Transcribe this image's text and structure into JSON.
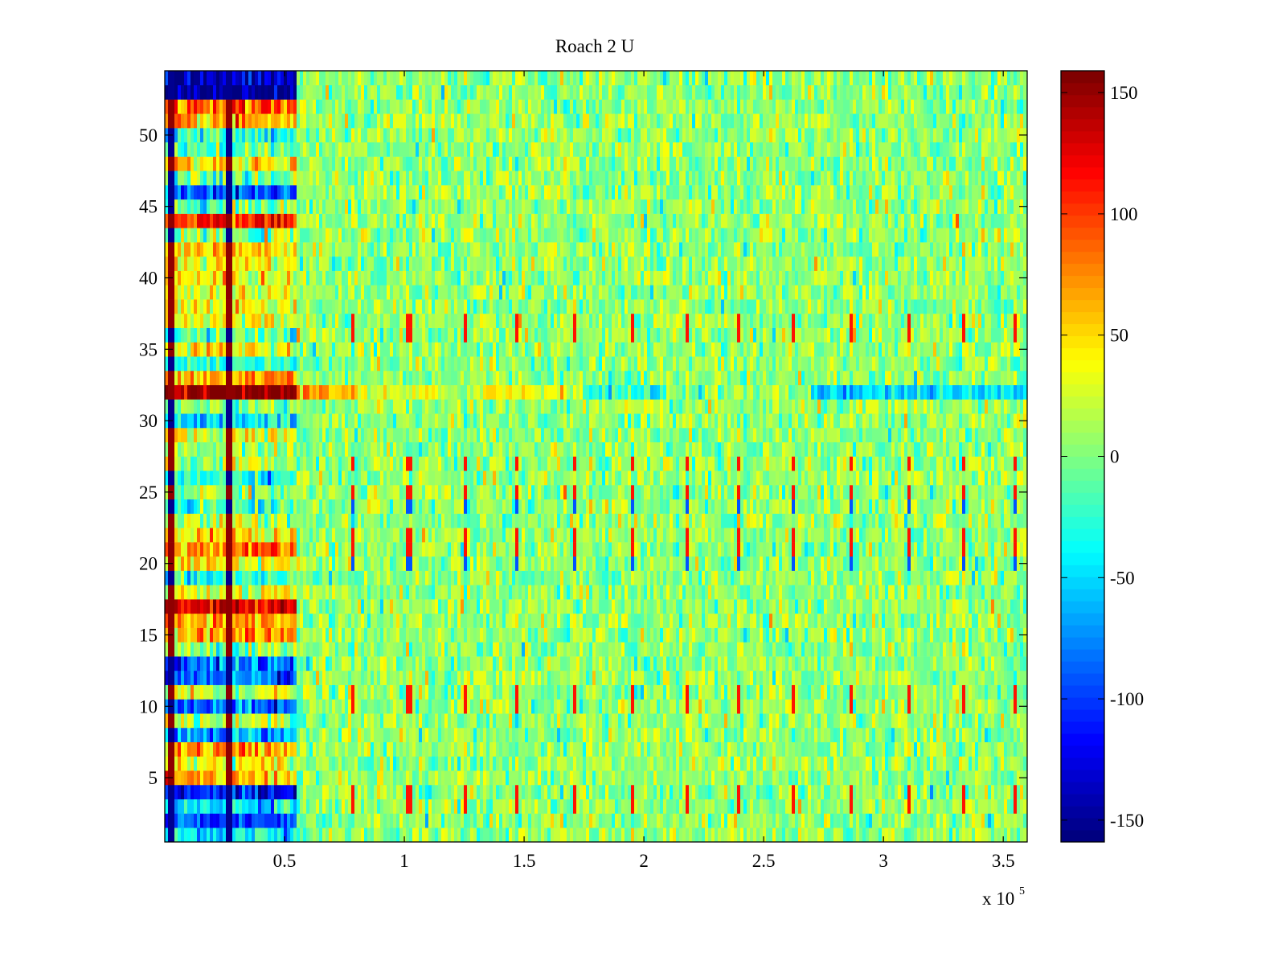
{
  "chart_data": {
    "type": "heatmap",
    "title": "Roach 2 U",
    "xlabel": "",
    "ylabel": "",
    "x_exponent_label": "x 10",
    "x_exponent": "5",
    "xlim": [
      0,
      360000
    ],
    "ylim": [
      0.5,
      54.5
    ],
    "clim": [
      -159,
      159
    ],
    "colormap": "jet",
    "x_ticks": [
      0.5,
      1,
      1.5,
      2,
      2.5,
      3,
      3.5
    ],
    "x_tick_labels": [
      "0.5",
      "1",
      "1.5",
      "2",
      "2.5",
      "3",
      "3.5"
    ],
    "y_ticks": [
      5,
      10,
      15,
      20,
      25,
      30,
      35,
      40,
      45,
      50
    ],
    "y_tick_labels": [
      "5",
      "10",
      "15",
      "20",
      "25",
      "30",
      "35",
      "40",
      "45",
      "50"
    ],
    "colorbar_ticks": [
      150,
      100,
      50,
      0,
      -50,
      -100,
      -150
    ],
    "colorbar_tick_labels": [
      "150",
      "100",
      "50",
      "0",
      "-50",
      "-100",
      "-150"
    ],
    "rows": 54,
    "early_segment_end": 55000,
    "early_row_levels": [
      -40,
      -95,
      -45,
      -115,
      55,
      30,
      70,
      -65,
      15,
      -90,
      25,
      -95,
      -80,
      5,
      70,
      65,
      125,
      25,
      -30,
      45,
      75,
      45,
      15,
      -20,
      10,
      -35,
      15,
      15,
      30,
      -50,
      0,
      159,
      70,
      -30,
      40,
      -15,
      35,
      35,
      30,
      35,
      40,
      50,
      0,
      110,
      -5,
      -90,
      -10,
      50,
      -10,
      -30,
      60,
      90,
      -155,
      -140
    ],
    "background_level": 5,
    "noise_std": 20,
    "row32_segments": [
      {
        "from": 55000,
        "to": 80000,
        "value": 70
      },
      {
        "from": 80000,
        "to": 130000,
        "value": 20
      },
      {
        "from": 130000,
        "to": 175000,
        "value": 40
      },
      {
        "from": 175000,
        "to": 210000,
        "value": -30
      },
      {
        "from": 210000,
        "to": 270000,
        "value": 5
      },
      {
        "from": 270000,
        "to": 360000,
        "value": -50
      }
    ],
    "spike_x": [
      79000,
      102000,
      125000,
      147000,
      171000,
      195000,
      218000,
      240000,
      263000,
      287000,
      311000,
      333000,
      355000
    ],
    "spike_rows": [
      3,
      4,
      10,
      11,
      20,
      21,
      22,
      24,
      25,
      27,
      36,
      37
    ],
    "early_dark_lines_x": [
      3000,
      26500
    ]
  }
}
